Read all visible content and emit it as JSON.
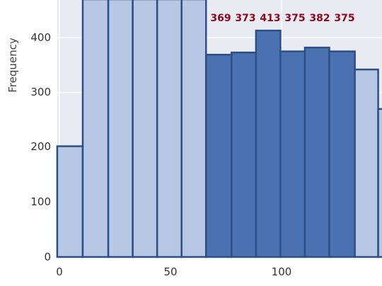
{
  "chart_data": {
    "type": "bar",
    "title": "",
    "xlabel": "",
    "ylabel": "Frequency",
    "x_ticks": [
      0,
      50,
      100
    ],
    "y_ticks": [
      0,
      100,
      200,
      300,
      400
    ],
    "xlim": [
      -1,
      144
    ],
    "ylim": [
      0,
      470
    ],
    "grid": true,
    "bins": [
      {
        "start": -1,
        "end": 10.5,
        "value": 202,
        "highlight": false
      },
      {
        "start": 10.5,
        "end": 22,
        "value": 470,
        "highlight": false
      },
      {
        "start": 22,
        "end": 33,
        "value": 470,
        "highlight": false
      },
      {
        "start": 33,
        "end": 44,
        "value": 470,
        "highlight": false
      },
      {
        "start": 44,
        "end": 55,
        "value": 470,
        "highlight": false
      },
      {
        "start": 55,
        "end": 66,
        "value": 470,
        "highlight": false
      },
      {
        "start": 66,
        "end": 77.5,
        "value": 369,
        "highlight": true
      },
      {
        "start": 77.5,
        "end": 88.5,
        "value": 373,
        "highlight": true
      },
      {
        "start": 88.5,
        "end": 99.5,
        "value": 413,
        "highlight": true
      },
      {
        "start": 99.5,
        "end": 110.5,
        "value": 375,
        "highlight": true
      },
      {
        "start": 110.5,
        "end": 121.5,
        "value": 382,
        "highlight": true
      },
      {
        "start": 121.5,
        "end": 133,
        "value": 375,
        "highlight": true
      },
      {
        "start": 133,
        "end": 143.5,
        "value": 342,
        "highlight": false
      },
      {
        "start": 143.5,
        "end": 150,
        "value": 270,
        "highlight": false
      }
    ],
    "annotations": [
      "369",
      "373",
      "413",
      "375",
      "382",
      "375"
    ],
    "colors": {
      "background": "#eaeaf2",
      "grid": "#ffffff",
      "bar_light": "#b7c8e4",
      "bar_dark": "#4a72b0",
      "edge": "#2d4f86",
      "annotation": "#8b0a1e"
    }
  }
}
